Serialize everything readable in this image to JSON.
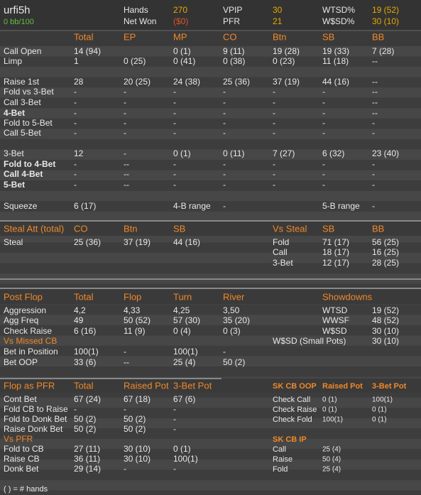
{
  "header": {
    "name": "urfi5h",
    "winrate": "0 bb/100",
    "stats": [
      [
        "Hands",
        "270"
      ],
      [
        "Net Won",
        "($0)"
      ],
      [
        "VPIP",
        "30"
      ],
      [
        "PFR",
        "21"
      ],
      [
        "WTSD%",
        "19 (52)"
      ],
      [
        "W$SD%",
        "30 (10)"
      ]
    ]
  },
  "blocks": [
    {
      "rows": [
        [
          null,
          "Total",
          "EP",
          "MP",
          "CO",
          "Btn",
          "SB",
          "BB"
        ],
        [
          "Call Open",
          "14 (94)",
          null,
          "0 (1)",
          "9 (11)",
          "19 (28)",
          "19 (33)",
          "7 (28)"
        ],
        [
          "Limp",
          "1",
          "0 (25)",
          "0 (41)",
          "0 (38)",
          "0 (23)",
          "11 (18)",
          "--"
        ],
        [
          "Raise 1st",
          "28",
          "20 (25)",
          "24 (38)",
          "25 (36)",
          "37 (19)",
          "44 (16)",
          "--"
        ],
        [
          "Fold vs 3-Bet",
          "-",
          "-",
          "-",
          "-",
          "-",
          "-",
          "--"
        ],
        [
          "Call 3-Bet",
          "-",
          "-",
          "-",
          "-",
          "-",
          "-",
          "--"
        ],
        [
          "4-Bet",
          "-",
          "-",
          "-",
          "-",
          "-",
          "-",
          "--"
        ],
        [
          "Fold to 5-Bet",
          "-",
          "-",
          "-",
          "-",
          "-",
          "-",
          "-"
        ],
        [
          "Call 5-Bet",
          "-",
          "-",
          "-",
          "-",
          "-",
          "-",
          "-"
        ],
        [
          "3-Bet",
          "12",
          "-",
          "0 (1)",
          "0 (11)",
          "7 (27)",
          "6 (32)",
          "23 (40)"
        ],
        [
          "Fold to 4-Bet",
          "-",
          "--",
          "-",
          "-",
          "-",
          "-",
          "-"
        ],
        [
          "Call 4-Bet",
          "-",
          "--",
          "-",
          "-",
          "-",
          "-",
          "-"
        ],
        [
          "5-Bet",
          "-",
          "--",
          "-",
          "-",
          "-",
          "-",
          "-"
        ],
        [
          "Squeeze",
          "6 (17)",
          null,
          "4-B range",
          "-",
          null,
          "5-B range",
          "-"
        ]
      ]
    },
    {
      "rows": [
        [
          "Steal Att (total)",
          "CO",
          "Btn",
          "SB",
          null,
          "Vs Steal",
          "SB",
          "BB"
        ],
        [
          "Steal",
          "25 (36)",
          "37 (19)",
          "44 (16)",
          null,
          "Fold",
          "71 (17)",
          "56 (25)"
        ],
        [
          null,
          null,
          null,
          null,
          null,
          "Call",
          "18 (17)",
          "16 (25)"
        ],
        [
          null,
          null,
          null,
          null,
          null,
          "3-Bet",
          "12 (17)",
          "28 (25)"
        ]
      ]
    },
    {
      "rows": [
        [
          "Post Flop",
          "Total",
          "Flop",
          "Turn",
          "River",
          null,
          "Showdowns",
          null
        ],
        [
          "Aggression",
          "4,2",
          "4,33",
          "4,25",
          "3,50",
          null,
          "WTSD",
          "19 (52)"
        ],
        [
          "Agg Freq",
          "49",
          "50 (52)",
          "57 (30)",
          "35 (20)",
          null,
          "WWSF",
          "48 (52)"
        ],
        [
          "Check Raise",
          "6 (16)",
          "11 (9)",
          "0 (4)",
          "0 (3)",
          null,
          "W$SD",
          "30 (10)"
        ],
        [
          "Vs Missed CB",
          null,
          null,
          null,
          null,
          "W$SD (Small Pots)",
          null,
          "30 (10)"
        ],
        [
          "Bet in Position",
          "100(1)",
          "-",
          "100(1)",
          "-",
          null,
          null,
          null
        ],
        [
          "Bet OOP",
          "33 (6)",
          "--",
          "25 (4)",
          "50 (2)",
          null,
          null,
          null
        ]
      ]
    },
    {
      "rows": [
        [
          "Flop as PFR",
          "Total",
          "Raised Pot",
          "3-Bet Pot",
          null,
          "SK CB OOP",
          "Raised Pot",
          "3-Bet Pot"
        ],
        [
          "Cont Bet",
          "67 (24)",
          "67 (18)",
          "67 (6)",
          null,
          "Check Call",
          "0 (1)",
          "100(1)"
        ],
        [
          "Fold CB to Raise",
          "-",
          "-",
          "-",
          null,
          "Check Raise",
          "0 (1)",
          "0 (1)"
        ],
        [
          "Fold to Donk Bet",
          "50 (2)",
          "50 (2)",
          "-",
          null,
          "Check Fold",
          "100(1)",
          "0 (1)"
        ],
        [
          "Raise Donk Bet",
          "50 (2)",
          "50 (2)",
          "-",
          null,
          null,
          null,
          null
        ],
        [
          "Vs PFR",
          null,
          null,
          null,
          null,
          "SK CB IP",
          null,
          null
        ],
        [
          "Fold to CB",
          "27 (11)",
          "30 (10)",
          "0 (1)",
          null,
          "Call",
          "25 (4)",
          null
        ],
        [
          "Raise CB",
          "36 (11)",
          "30 (10)",
          "100(1)",
          null,
          "Raise",
          "50 (4)",
          null
        ],
        [
          "Donk Bet",
          "29 (14)",
          "-",
          "-",
          null,
          "Fold",
          "25 (4)",
          null
        ]
      ]
    }
  ],
  "footer": "( ) = # hands"
}
